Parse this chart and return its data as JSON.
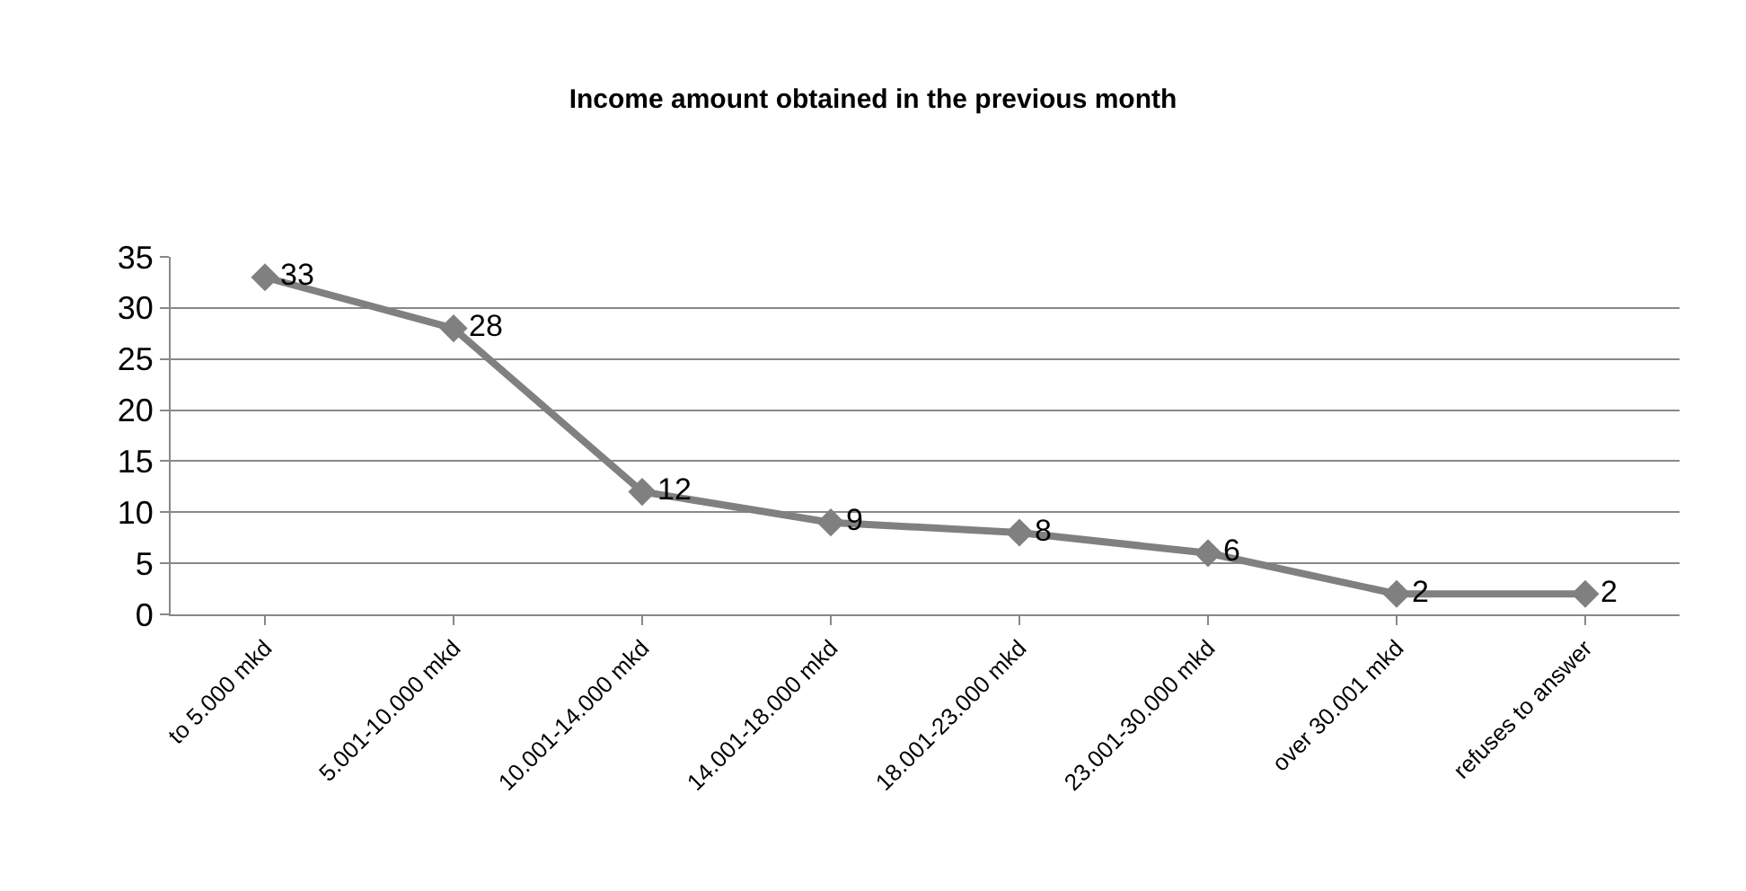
{
  "chart_data": {
    "type": "line",
    "title": "Income amount obtained in the previous month",
    "categories": [
      "to 5.000 mkd",
      "5.001-10.000 mkd",
      "10.001-14.000 mkd",
      "14.001-18.000 mkd",
      "18.001-23.000 mkd",
      "23.001-30.000 mkd",
      "over 30.001 mkd",
      "refuses to answer"
    ],
    "values": [
      33,
      28,
      12,
      9,
      8,
      6,
      2,
      2
    ],
    "color": "#808080",
    "ylim": [
      0,
      35
    ],
    "yticks": [
      0,
      5,
      10,
      15,
      20,
      25,
      30,
      35
    ],
    "grid": "y",
    "marker": "diamond",
    "line_style": "solid",
    "data_labels": true
  }
}
